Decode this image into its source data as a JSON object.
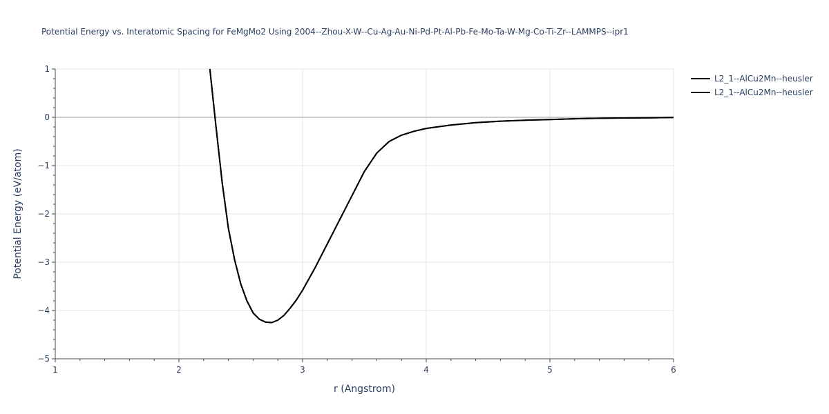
{
  "chart_data": {
    "type": "line",
    "title": "Potential Energy vs. Interatomic Spacing for FeMgMo2 Using 2004--Zhou-X-W--Cu-Ag-Au-Ni-Pd-Pt-Al-Pb-Fe-Mo-Ta-W-Mg-Co-Ti-Zr--LAMMPS--ipr1",
    "xlabel": "r (Angstrom)",
    "ylabel": "Potential Energy (eV/atom)",
    "xlim": [
      1,
      6
    ],
    "ylim": [
      -5,
      1
    ],
    "xticks": [
      1,
      2,
      3,
      4,
      5,
      6
    ],
    "yticks": [
      1,
      0,
      -1,
      -2,
      -3,
      -4,
      -5
    ],
    "ytick_labels": [
      "1",
      "0",
      "−1",
      "−2",
      "−3",
      "−4",
      "−5"
    ],
    "grid": true,
    "legend_position": "top-right",
    "series": [
      {
        "name": "L2_1--AlCu2Mn--heusler",
        "color": "#000000",
        "x": [
          2.25,
          2.3,
          2.35,
          2.4,
          2.45,
          2.5,
          2.55,
          2.6,
          2.65,
          2.7,
          2.75,
          2.8,
          2.85,
          2.9,
          2.95,
          3.0,
          3.1,
          3.2,
          3.3,
          3.4,
          3.5,
          3.6,
          3.7,
          3.8,
          3.9,
          4.0,
          4.2,
          4.4,
          4.6,
          4.8,
          5.0,
          5.2,
          5.4,
          5.6,
          5.8,
          6.0
        ],
        "y": [
          1.0,
          -0.2,
          -1.35,
          -2.3,
          -2.95,
          -3.45,
          -3.8,
          -4.05,
          -4.18,
          -4.24,
          -4.25,
          -4.2,
          -4.1,
          -3.95,
          -3.78,
          -3.58,
          -3.12,
          -2.62,
          -2.12,
          -1.62,
          -1.12,
          -0.74,
          -0.5,
          -0.37,
          -0.29,
          -0.23,
          -0.16,
          -0.11,
          -0.08,
          -0.06,
          -0.045,
          -0.03,
          -0.02,
          -0.015,
          -0.01,
          -0.005
        ]
      },
      {
        "name": "L2_1--AlCu2Mn--heusler",
        "color": "#000000",
        "x": [
          2.25,
          2.3,
          2.35,
          2.4,
          2.45,
          2.5,
          2.55,
          2.6,
          2.65,
          2.7,
          2.75,
          2.8,
          2.85,
          2.9,
          2.95,
          3.0,
          3.1,
          3.2,
          3.3,
          3.4,
          3.5,
          3.6,
          3.7,
          3.8,
          3.9,
          4.0,
          4.2,
          4.4,
          4.6,
          4.8,
          5.0,
          5.2,
          5.4,
          5.6,
          5.8,
          6.0
        ],
        "y": [
          1.0,
          -0.2,
          -1.35,
          -2.3,
          -2.95,
          -3.45,
          -3.8,
          -4.05,
          -4.18,
          -4.24,
          -4.25,
          -4.2,
          -4.1,
          -3.95,
          -3.78,
          -3.58,
          -3.12,
          -2.62,
          -2.12,
          -1.62,
          -1.12,
          -0.74,
          -0.5,
          -0.37,
          -0.29,
          -0.23,
          -0.16,
          -0.11,
          -0.08,
          -0.06,
          -0.045,
          -0.03,
          -0.02,
          -0.015,
          -0.01,
          -0.005
        ]
      }
    ]
  },
  "colors": {
    "grid": "#e5e5e5",
    "zero_line": "#cccccc",
    "axis": "#444444",
    "text": "#2a3f5f"
  }
}
